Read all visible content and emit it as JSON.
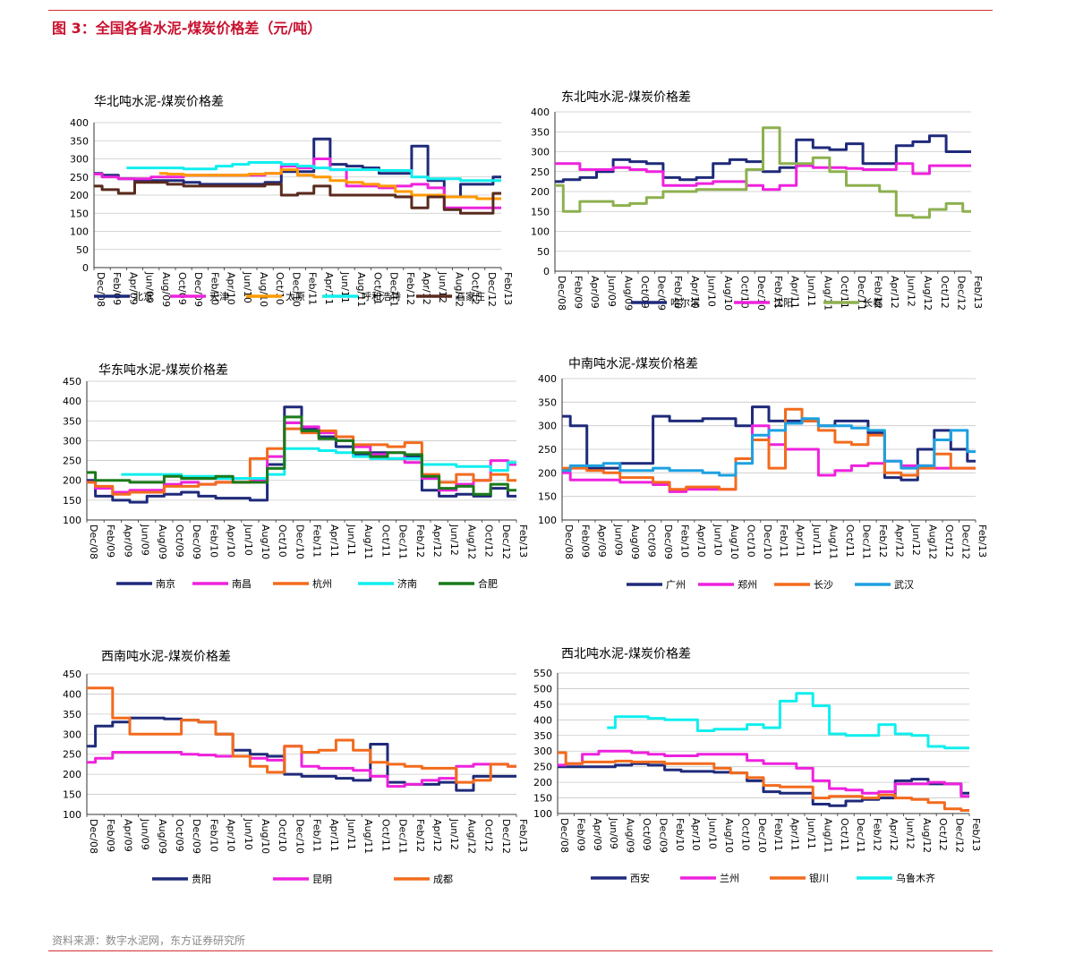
{
  "figure": {
    "title": "图 3：全国各省水泥-煤炭价格差（元/吨）",
    "source": "资料来源：数字水泥网，东方证券研究所"
  },
  "chart_data": [
    {
      "type": "line",
      "title": "华北吨水泥-煤炭价格差",
      "ylim": [
        0,
        400
      ],
      "yticks": [
        0,
        50,
        100,
        150,
        200,
        250,
        300,
        350,
        400
      ],
      "grid": true,
      "legend": "bottom",
      "xcategories": [
        "Dec/08",
        "Feb/09",
        "Apr/09",
        "Jun/09",
        "Aug/09",
        "Oct/09",
        "Dec/09",
        "Feb/10",
        "Apr/10",
        "Jun/10",
        "Aug/10",
        "Oct/10",
        "Dec/10",
        "Feb/11",
        "Apr/11",
        "Jun/11",
        "Aug/11",
        "Oct/11",
        "Dec/11",
        "Feb/12",
        "Apr/12",
        "Jun/12",
        "Aug/12",
        "Oct/12",
        "Dec/12",
        "Feb/13"
      ],
      "series": [
        {
          "name": "北京",
          "color": "#1f2a7a",
          "values": [
            260,
            255,
            245,
            240,
            240,
            240,
            235,
            230,
            230,
            230,
            230,
            235,
            265,
            265,
            355,
            285,
            280,
            275,
            260,
            260,
            335,
            240,
            195,
            230,
            230,
            250
          ]
        },
        {
          "name": "天津",
          "color": "#ee22dd",
          "values": [
            258,
            250,
            245,
            245,
            250,
            250,
            255,
            255,
            255,
            255,
            255,
            260,
            280,
            275,
            300,
            270,
            225,
            225,
            220,
            225,
            230,
            220,
            165,
            165,
            165,
            165
          ]
        },
        {
          "name": "太原",
          "color": "#ff9900",
          "values": [
            null,
            null,
            null,
            null,
            260,
            258,
            255,
            255,
            255,
            255,
            258,
            260,
            270,
            255,
            250,
            240,
            235,
            230,
            225,
            210,
            200,
            200,
            195,
            195,
            190,
            190
          ]
        },
        {
          "name": "呼和浩特",
          "color": "#11eeee",
          "values": [
            null,
            null,
            275,
            275,
            275,
            275,
            272,
            272,
            280,
            285,
            290,
            290,
            285,
            280,
            275,
            270,
            270,
            270,
            268,
            268,
            250,
            245,
            245,
            240,
            240,
            240
          ]
        },
        {
          "name": "石家庄",
          "color": "#5a2a1e",
          "values": [
            225,
            215,
            205,
            235,
            235,
            230,
            225,
            225,
            225,
            225,
            225,
            230,
            200,
            205,
            225,
            200,
            200,
            200,
            200,
            195,
            165,
            195,
            160,
            150,
            150,
            205
          ]
        }
      ]
    },
    {
      "type": "line",
      "title": "东北吨水泥-煤炭价格差",
      "ylim": [
        0,
        400
      ],
      "yticks": [
        0,
        50,
        100,
        150,
        200,
        250,
        300,
        350,
        400
      ],
      "grid": true,
      "legend": "bottom",
      "xcategories": [
        "Dec/08",
        "Feb/09",
        "Apr/09",
        "Jun/09",
        "Aug/09",
        "Oct/09",
        "Dec/09",
        "Feb/10",
        "Apr/10",
        "Jun/10",
        "Aug/10",
        "Oct/10",
        "Dec/10",
        "Feb/11",
        "Apr/11",
        "Jun/11",
        "Aug/11",
        "Oct/11",
        "Dec/11",
        "Feb/12",
        "Apr/12",
        "Jun/12",
        "Aug/12",
        "Oct/12",
        "Dec/12",
        "Feb/13"
      ],
      "series": [
        {
          "name": "哈尔滨",
          "color": "#1f2a7a",
          "values": [
            225,
            230,
            235,
            250,
            280,
            275,
            270,
            235,
            230,
            235,
            270,
            280,
            275,
            250,
            260,
            330,
            310,
            305,
            320,
            270,
            270,
            315,
            325,
            340,
            300,
            300
          ]
        },
        {
          "name": "沈阳",
          "color": "#ee22dd",
          "values": [
            270,
            270,
            255,
            255,
            260,
            255,
            250,
            215,
            215,
            220,
            225,
            225,
            215,
            205,
            215,
            265,
            260,
            260,
            258,
            255,
            255,
            270,
            245,
            265,
            265,
            265
          ]
        },
        {
          "name": "长春",
          "color": "#8db04f",
          "values": [
            215,
            150,
            175,
            175,
            165,
            170,
            185,
            200,
            200,
            205,
            205,
            205,
            255,
            360,
            270,
            270,
            285,
            250,
            215,
            215,
            200,
            140,
            135,
            155,
            170,
            150
          ]
        }
      ]
    },
    {
      "type": "line",
      "title": "华东吨水泥-煤炭价格差",
      "ylim": [
        100,
        450
      ],
      "yticks": [
        100,
        150,
        200,
        250,
        300,
        350,
        400,
        450
      ],
      "grid": true,
      "legend": "bottom",
      "xcategories": [
        "Dec/08",
        "Feb/09",
        "Apr/09",
        "Jun/09",
        "Aug/09",
        "Oct/09",
        "Dec/09",
        "Feb/10",
        "Apr/10",
        "Jun/10",
        "Aug/10",
        "Oct/10",
        "Dec/10",
        "Feb/11",
        "Apr/11",
        "Jun/11",
        "Aug/11",
        "Oct/11",
        "Dec/11",
        "Feb/12",
        "Apr/12",
        "Jun/12",
        "Aug/12",
        "Oct/12",
        "Dec/12",
        "Feb/13"
      ],
      "series": [
        {
          "name": "南京",
          "color": "#1f2a7a",
          "values": [
            200,
            160,
            150,
            145,
            160,
            165,
            170,
            160,
            155,
            155,
            150,
            240,
            385,
            330,
            310,
            285,
            265,
            270,
            255,
            260,
            175,
            160,
            165,
            160,
            180,
            160
          ]
        },
        {
          "name": "南昌",
          "color": "#ee22dd",
          "values": [
            195,
            180,
            170,
            175,
            175,
            190,
            195,
            190,
            195,
            195,
            200,
            260,
            345,
            335,
            320,
            300,
            285,
            265,
            270,
            245,
            205,
            175,
            190,
            200,
            250,
            240
          ]
        },
        {
          "name": "杭州",
          "color": "#f26b1d",
          "values": [
            195,
            185,
            165,
            170,
            170,
            185,
            185,
            190,
            195,
            195,
            255,
            280,
            330,
            320,
            325,
            310,
            290,
            290,
            285,
            295,
            215,
            195,
            215,
            200,
            215,
            200
          ]
        },
        {
          "name": "济南",
          "color": "#11eeee",
          "values": [
            null,
            null,
            215,
            215,
            215,
            215,
            210,
            210,
            205,
            205,
            205,
            215,
            280,
            280,
            275,
            270,
            260,
            255,
            255,
            255,
            240,
            240,
            235,
            235,
            225,
            245
          ]
        },
        {
          "name": "合肥",
          "color": "#1a7a1a",
          "values": [
            220,
            200,
            200,
            195,
            195,
            210,
            205,
            205,
            210,
            195,
            195,
            230,
            360,
            325,
            305,
            300,
            270,
            260,
            270,
            265,
            210,
            180,
            185,
            165,
            190,
            175
          ]
        }
      ]
    },
    {
      "type": "line",
      "title": "中南吨水泥-煤炭价格差",
      "ylim": [
        100,
        400
      ],
      "yticks": [
        100,
        150,
        200,
        250,
        300,
        350,
        400
      ],
      "grid": true,
      "legend": "bottom",
      "xcategories": [
        "Dec/08",
        "Feb/09",
        "Apr/09",
        "Jun/09",
        "Aug/09",
        "Oct/09",
        "Dec/09",
        "Feb/10",
        "Apr/10",
        "Jun/10",
        "Aug/10",
        "Oct/10",
        "Dec/10",
        "Feb/11",
        "Apr/11",
        "Jun/11",
        "Aug/11",
        "Oct/11",
        "Dec/11",
        "Feb/12",
        "Apr/12",
        "Jun/12",
        "Aug/12",
        "Oct/12",
        "Dec/12",
        "Feb/13"
      ],
      "series": [
        {
          "name": "广州",
          "color": "#1f2a7a",
          "values": [
            320,
            300,
            210,
            210,
            220,
            220,
            320,
            310,
            310,
            315,
            315,
            300,
            340,
            310,
            310,
            310,
            300,
            310,
            310,
            285,
            190,
            185,
            250,
            290,
            250,
            225
          ]
        },
        {
          "name": "郑州",
          "color": "#ee22dd",
          "values": [
            200,
            185,
            185,
            185,
            180,
            180,
            175,
            160,
            165,
            165,
            165,
            230,
            300,
            260,
            250,
            250,
            195,
            205,
            215,
            220,
            225,
            215,
            215,
            210,
            210,
            210
          ]
        },
        {
          "name": "长沙",
          "color": "#f26b1d",
          "values": [
            210,
            210,
            205,
            200,
            190,
            190,
            180,
            165,
            170,
            170,
            165,
            230,
            270,
            210,
            335,
            310,
            290,
            265,
            260,
            280,
            200,
            195,
            210,
            240,
            210,
            210
          ]
        },
        {
          "name": "武汉",
          "color": "#1ea0e0",
          "values": [
            205,
            215,
            215,
            220,
            205,
            205,
            210,
            205,
            205,
            200,
            195,
            220,
            280,
            290,
            305,
            315,
            300,
            300,
            295,
            290,
            225,
            210,
            215,
            270,
            290,
            245
          ]
        }
      ]
    },
    {
      "type": "line",
      "title": "西南吨水泥-煤炭价格差",
      "ylim": [
        100,
        450
      ],
      "yticks": [
        100,
        150,
        200,
        250,
        300,
        350,
        400,
        450
      ],
      "grid": true,
      "legend": "bottom",
      "xcategories": [
        "Dec/08",
        "Feb/09",
        "Apr/09",
        "Jun/09",
        "Aug/09",
        "Oct/09",
        "Dec/09",
        "Feb/10",
        "Apr/10",
        "Jun/10",
        "Aug/10",
        "Oct/10",
        "Dec/10",
        "Feb/11",
        "Apr/11",
        "Jun/11",
        "Aug/11",
        "Oct/11",
        "Dec/11",
        "Feb/12",
        "Apr/12",
        "Jun/12",
        "Aug/12",
        "Oct/12",
        "Dec/12",
        "Feb/13"
      ],
      "series": [
        {
          "name": "贵阳",
          "color": "#1f2a7a",
          "values": [
            270,
            320,
            330,
            340,
            340,
            338,
            335,
            330,
            300,
            260,
            250,
            245,
            200,
            195,
            195,
            190,
            185,
            275,
            180,
            175,
            175,
            180,
            160,
            195,
            195,
            195
          ]
        },
        {
          "name": "昆明",
          "color": "#ee22dd",
          "values": [
            230,
            240,
            255,
            255,
            255,
            255,
            250,
            248,
            245,
            245,
            240,
            235,
            270,
            220,
            215,
            215,
            210,
            195,
            170,
            175,
            185,
            190,
            220,
            225,
            225,
            220
          ]
        },
        {
          "name": "成都",
          "color": "#f26b1d",
          "values": [
            415,
            415,
            340,
            300,
            300,
            300,
            335,
            330,
            300,
            245,
            220,
            205,
            270,
            255,
            260,
            285,
            260,
            230,
            225,
            220,
            215,
            215,
            180,
            185,
            225,
            220
          ]
        }
      ]
    },
    {
      "type": "line",
      "title": "西北吨水泥-煤炭价格差",
      "ylim": [
        100,
        550
      ],
      "yticks": [
        100,
        150,
        200,
        250,
        300,
        350,
        400,
        450,
        500,
        550
      ],
      "grid": true,
      "legend": "bottom",
      "xcategories": [
        "Dec/08",
        "Feb/09",
        "Apr/09",
        "Jun/09",
        "Aug/09",
        "Oct/09",
        "Dec/09",
        "Feb/10",
        "Apr/10",
        "Jun/10",
        "Aug/10",
        "Oct/10",
        "Dec/10",
        "Feb/11",
        "Apr/11",
        "Jun/11",
        "Aug/11",
        "Oct/11",
        "Dec/11",
        "Feb/12",
        "Apr/12",
        "Jun/12",
        "Aug/12",
        "Oct/12",
        "Dec/12",
        "Feb/13"
      ],
      "series": [
        {
          "name": "西安",
          "color": "#1f2a7a",
          "values": [
            250,
            250,
            250,
            250,
            255,
            260,
            255,
            240,
            235,
            235,
            232,
            230,
            205,
            170,
            165,
            165,
            130,
            125,
            140,
            145,
            150,
            205,
            210,
            195,
            195,
            165
          ]
        },
        {
          "name": "兰州",
          "color": "#ee22dd",
          "values": [
            255,
            260,
            290,
            300,
            300,
            295,
            290,
            285,
            285,
            290,
            290,
            290,
            270,
            260,
            260,
            245,
            205,
            180,
            175,
            165,
            170,
            195,
            195,
            200,
            195,
            155
          ]
        },
        {
          "name": "银川",
          "color": "#f26b1d",
          "values": [
            295,
            260,
            265,
            265,
            268,
            265,
            265,
            260,
            260,
            260,
            245,
            230,
            215,
            190,
            185,
            185,
            150,
            155,
            155,
            150,
            160,
            150,
            145,
            135,
            115,
            110
          ]
        },
        {
          "name": "乌鲁木齐",
          "color": "#11eeee",
          "values": [
            null,
            null,
            null,
            375,
            410,
            410,
            405,
            400,
            400,
            365,
            370,
            370,
            385,
            375,
            460,
            485,
            445,
            355,
            350,
            350,
            385,
            355,
            350,
            315,
            310,
            310
          ]
        }
      ]
    }
  ]
}
